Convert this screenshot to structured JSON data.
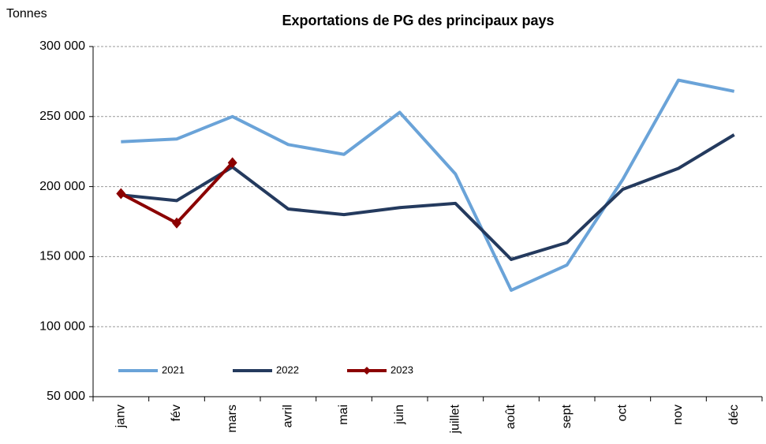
{
  "chart_data": {
    "type": "line",
    "title": "Exportations de PG des principaux pays",
    "y_label": "Tonnes",
    "categories": [
      "janv",
      "fév",
      "mars",
      "avril",
      "mai",
      "juin",
      "juillet",
      "août",
      "sept",
      "oct",
      "nov",
      "déc"
    ],
    "series": [
      {
        "name": "2021",
        "color": "#6aa3d8",
        "values": [
          232000,
          234000,
          250000,
          230000,
          223000,
          253000,
          209000,
          126000,
          144000,
          205000,
          276000,
          268000
        ]
      },
      {
        "name": "2022",
        "color": "#243a5e",
        "values": [
          194000,
          190000,
          214000,
          184000,
          180000,
          185000,
          188000,
          148000,
          160000,
          198000,
          213000,
          237000
        ]
      },
      {
        "name": "2023",
        "color": "#8b0000",
        "marker": "diamond",
        "values": [
          195000,
          174000,
          217000,
          null,
          null,
          null,
          null,
          null,
          null,
          null,
          null,
          null
        ]
      }
    ],
    "ylim": [
      50000,
      300000
    ],
    "yticks": [
      {
        "value": 50000,
        "label": "50 000"
      },
      {
        "value": 100000,
        "label": "100 000"
      },
      {
        "value": 150000,
        "label": "150 000"
      },
      {
        "value": 200000,
        "label": "200 000"
      },
      {
        "value": 250000,
        "label": "250 000"
      },
      {
        "value": 300000,
        "label": "300 000"
      }
    ],
    "grid": true,
    "legend": "lower left"
  }
}
